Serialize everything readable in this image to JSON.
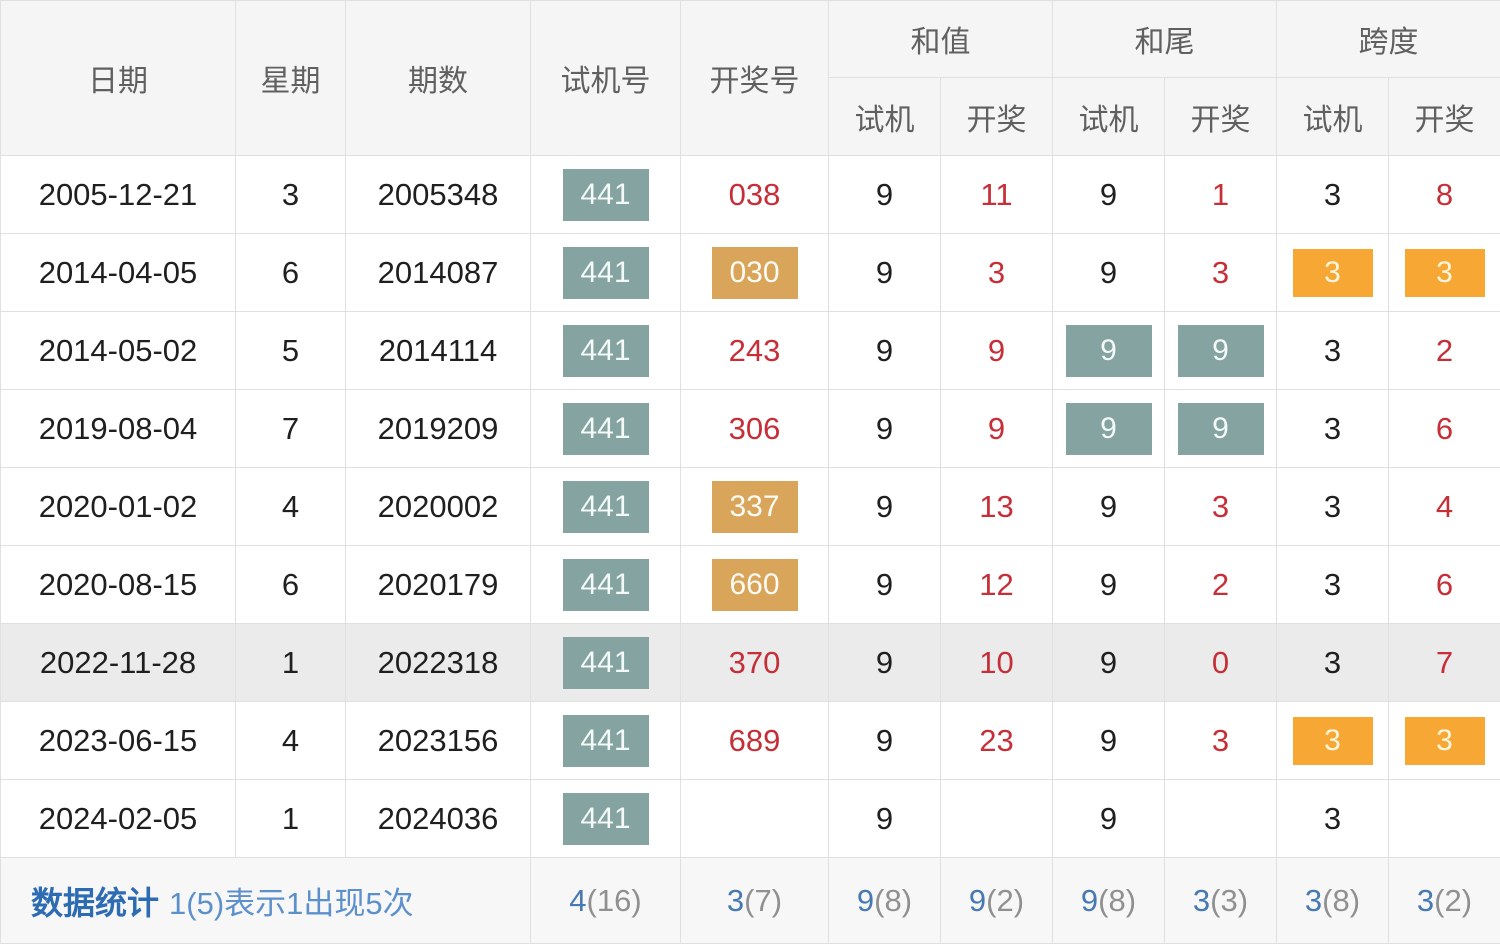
{
  "table": {
    "header": {
      "date": "日期",
      "week": "星期",
      "issue": "期数",
      "test_number": "试机号",
      "draw_number": "开奖号",
      "sum": "和值",
      "sum_tail": "和尾",
      "span": "跨度",
      "sub_test": "试机",
      "sub_draw": "开奖"
    },
    "rows": [
      {
        "highlight": false,
        "date": {
          "text": "2005-12-21",
          "style": "plain"
        },
        "week": {
          "text": "3",
          "style": "plain"
        },
        "issue": {
          "text": "2005348",
          "style": "plain"
        },
        "test_no": {
          "text": "441",
          "style": "teal-badge"
        },
        "draw_no": {
          "text": "038",
          "style": "red"
        },
        "sum_test": {
          "text": "9",
          "style": "plain"
        },
        "sum_draw": {
          "text": "11",
          "style": "red"
        },
        "tail_test": {
          "text": "9",
          "style": "plain"
        },
        "tail_draw": {
          "text": "1",
          "style": "red"
        },
        "span_test": {
          "text": "3",
          "style": "plain"
        },
        "span_draw": {
          "text": "8",
          "style": "red"
        }
      },
      {
        "highlight": false,
        "date": {
          "text": "2014-04-05",
          "style": "plain"
        },
        "week": {
          "text": "6",
          "style": "plain"
        },
        "issue": {
          "text": "2014087",
          "style": "plain"
        },
        "test_no": {
          "text": "441",
          "style": "teal-badge"
        },
        "draw_no": {
          "text": "030",
          "style": "tan-badge"
        },
        "sum_test": {
          "text": "9",
          "style": "plain"
        },
        "sum_draw": {
          "text": "3",
          "style": "red"
        },
        "tail_test": {
          "text": "9",
          "style": "plain"
        },
        "tail_draw": {
          "text": "3",
          "style": "red"
        },
        "span_test": {
          "text": "3",
          "style": "orange-badge"
        },
        "span_draw": {
          "text": "3",
          "style": "orange-badge"
        }
      },
      {
        "highlight": false,
        "date": {
          "text": "2014-05-02",
          "style": "plain"
        },
        "week": {
          "text": "5",
          "style": "plain"
        },
        "issue": {
          "text": "2014114",
          "style": "plain"
        },
        "test_no": {
          "text": "441",
          "style": "teal-badge"
        },
        "draw_no": {
          "text": "243",
          "style": "red"
        },
        "sum_test": {
          "text": "9",
          "style": "plain"
        },
        "sum_draw": {
          "text": "9",
          "style": "red"
        },
        "tail_test": {
          "text": "9",
          "style": "teal-badge"
        },
        "tail_draw": {
          "text": "9",
          "style": "teal-badge"
        },
        "span_test": {
          "text": "3",
          "style": "plain"
        },
        "span_draw": {
          "text": "2",
          "style": "red"
        }
      },
      {
        "highlight": false,
        "date": {
          "text": "2019-08-04",
          "style": "plain"
        },
        "week": {
          "text": "7",
          "style": "plain"
        },
        "issue": {
          "text": "2019209",
          "style": "plain"
        },
        "test_no": {
          "text": "441",
          "style": "teal-badge"
        },
        "draw_no": {
          "text": "306",
          "style": "red"
        },
        "sum_test": {
          "text": "9",
          "style": "plain"
        },
        "sum_draw": {
          "text": "9",
          "style": "red"
        },
        "tail_test": {
          "text": "9",
          "style": "teal-badge"
        },
        "tail_draw": {
          "text": "9",
          "style": "teal-badge"
        },
        "span_test": {
          "text": "3",
          "style": "plain"
        },
        "span_draw": {
          "text": "6",
          "style": "red"
        }
      },
      {
        "highlight": false,
        "date": {
          "text": "2020-01-02",
          "style": "plain"
        },
        "week": {
          "text": "4",
          "style": "plain"
        },
        "issue": {
          "text": "2020002",
          "style": "plain"
        },
        "test_no": {
          "text": "441",
          "style": "teal-badge"
        },
        "draw_no": {
          "text": "337",
          "style": "tan-badge"
        },
        "sum_test": {
          "text": "9",
          "style": "plain"
        },
        "sum_draw": {
          "text": "13",
          "style": "red"
        },
        "tail_test": {
          "text": "9",
          "style": "plain"
        },
        "tail_draw": {
          "text": "3",
          "style": "red"
        },
        "span_test": {
          "text": "3",
          "style": "plain"
        },
        "span_draw": {
          "text": "4",
          "style": "red"
        }
      },
      {
        "highlight": false,
        "date": {
          "text": "2020-08-15",
          "style": "plain"
        },
        "week": {
          "text": "6",
          "style": "plain"
        },
        "issue": {
          "text": "2020179",
          "style": "plain"
        },
        "test_no": {
          "text": "441",
          "style": "teal-badge"
        },
        "draw_no": {
          "text": "660",
          "style": "tan-badge"
        },
        "sum_test": {
          "text": "9",
          "style": "plain"
        },
        "sum_draw": {
          "text": "12",
          "style": "red"
        },
        "tail_test": {
          "text": "9",
          "style": "plain"
        },
        "tail_draw": {
          "text": "2",
          "style": "red"
        },
        "span_test": {
          "text": "3",
          "style": "plain"
        },
        "span_draw": {
          "text": "6",
          "style": "red"
        }
      },
      {
        "highlight": true,
        "date": {
          "text": "2022-11-28",
          "style": "plain"
        },
        "week": {
          "text": "1",
          "style": "plain"
        },
        "issue": {
          "text": "2022318",
          "style": "plain"
        },
        "test_no": {
          "text": "441",
          "style": "teal-badge"
        },
        "draw_no": {
          "text": "370",
          "style": "red"
        },
        "sum_test": {
          "text": "9",
          "style": "plain"
        },
        "sum_draw": {
          "text": "10",
          "style": "red"
        },
        "tail_test": {
          "text": "9",
          "style": "plain"
        },
        "tail_draw": {
          "text": "0",
          "style": "red"
        },
        "span_test": {
          "text": "3",
          "style": "plain"
        },
        "span_draw": {
          "text": "7",
          "style": "red"
        }
      },
      {
        "highlight": false,
        "date": {
          "text": "2023-06-15",
          "style": "plain"
        },
        "week": {
          "text": "4",
          "style": "plain"
        },
        "issue": {
          "text": "2023156",
          "style": "plain"
        },
        "test_no": {
          "text": "441",
          "style": "teal-badge"
        },
        "draw_no": {
          "text": "689",
          "style": "red"
        },
        "sum_test": {
          "text": "9",
          "style": "plain"
        },
        "sum_draw": {
          "text": "23",
          "style": "red"
        },
        "tail_test": {
          "text": "9",
          "style": "plain"
        },
        "tail_draw": {
          "text": "3",
          "style": "red"
        },
        "span_test": {
          "text": "3",
          "style": "orange-badge"
        },
        "span_draw": {
          "text": "3",
          "style": "orange-badge"
        }
      },
      {
        "highlight": false,
        "date": {
          "text": "2024-02-05",
          "style": "plain"
        },
        "week": {
          "text": "1",
          "style": "plain"
        },
        "issue": {
          "text": "2024036",
          "style": "plain"
        },
        "test_no": {
          "text": "441",
          "style": "teal-badge"
        },
        "draw_no": {
          "text": "",
          "style": "plain"
        },
        "sum_test": {
          "text": "9",
          "style": "plain"
        },
        "sum_draw": {
          "text": "",
          "style": "plain"
        },
        "tail_test": {
          "text": "9",
          "style": "plain"
        },
        "tail_draw": {
          "text": "",
          "style": "plain"
        },
        "span_test": {
          "text": "3",
          "style": "plain"
        },
        "span_draw": {
          "text": "",
          "style": "plain"
        }
      }
    ],
    "stats": {
      "label": "数据统计",
      "note": "1(5)表示1出现5次",
      "cells": [
        {
          "value": "4",
          "count": "(16)"
        },
        {
          "value": "3",
          "count": "(7)"
        },
        {
          "value": "9",
          "count": "(8)"
        },
        {
          "value": "9",
          "count": "(2)"
        },
        {
          "value": "9",
          "count": "(8)"
        },
        {
          "value": "3",
          "count": "(3)"
        },
        {
          "value": "3",
          "count": "(8)"
        },
        {
          "value": "3",
          "count": "(2)"
        }
      ]
    }
  },
  "colors": {
    "teal_badge": "#84a3a1",
    "tan_badge": "#d8a55b",
    "orange_badge": "#f7a733",
    "red_text": "#c62f38",
    "highlight_row": "#ebebeb",
    "header_bg": "#f5f5f5",
    "stats_label_blue": "#2d6cb3",
    "stats_value_blue": "#4679b2",
    "stats_count_gray": "#909090"
  }
}
